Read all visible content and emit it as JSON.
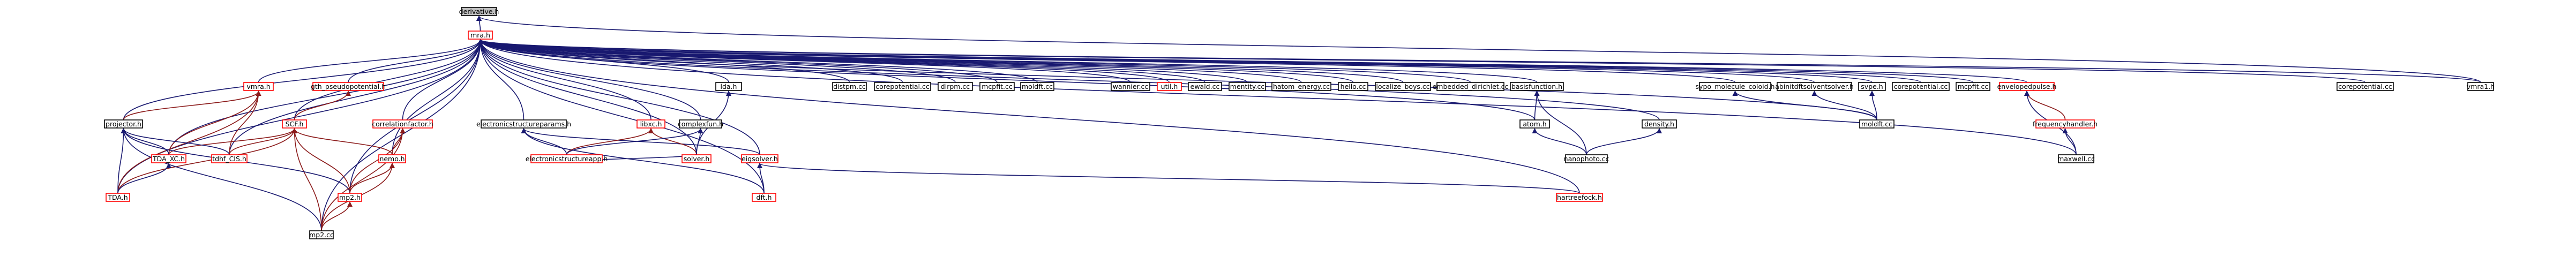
{
  "colors": {
    "normal_border": "#000000",
    "link_border": "#ff0000",
    "root_fill": "#bfbfbf",
    "edge_blue": "#191970",
    "edge_red": "#8b1a1a",
    "text": "#000000"
  },
  "graph": {
    "nodes": [
      {
        "id": "derivative_h",
        "label": "derivative.h",
        "root": true
      },
      {
        "id": "mra_h",
        "label": "mra.h",
        "link": true
      },
      {
        "id": "vmra1_h",
        "label": "vmra1.h"
      },
      {
        "id": "vmra_h",
        "label": "vmra.h",
        "link": true
      },
      {
        "id": "gth_h",
        "label": "gth_pseudopotential.h",
        "link": true
      },
      {
        "id": "lda_h",
        "label": "lda.h"
      },
      {
        "id": "distpm_cc",
        "label": "distpm.cc"
      },
      {
        "id": "corepotential_cc",
        "label": "corepotential.cc"
      },
      {
        "id": "dirpm_cc",
        "label": "dirpm.cc"
      },
      {
        "id": "mcpfit_cc",
        "label": "mcpfit.cc"
      },
      {
        "id": "moldft_cc",
        "label": "moldft.cc"
      },
      {
        "id": "wannier_cc",
        "label": "wannier.cc"
      },
      {
        "id": "util_h",
        "label": "util.h",
        "link": true
      },
      {
        "id": "ewald_cc",
        "label": "ewald.cc"
      },
      {
        "id": "mentity_cc",
        "label": "mentity.cc"
      },
      {
        "id": "hatom_energy_cc",
        "label": "hatom_energy.cc"
      },
      {
        "id": "hello_cc",
        "label": "hello.cc"
      },
      {
        "id": "localize_boys_cc",
        "label": "localize_boys.cc"
      },
      {
        "id": "embedded_dirichlet_cc",
        "label": "embedded_dirichlet.cc"
      },
      {
        "id": "basisfunction_h",
        "label": "basisfunction.h"
      },
      {
        "id": "sypo_molecule_coloid_h",
        "label": "sypo_molecule_coloid.h"
      },
      {
        "id": "abinitdftsolventsolver_h",
        "label": "abinitdftsolventsolver.h"
      },
      {
        "id": "svpe_h",
        "label": "svpe.h"
      },
      {
        "id": "corepotential_cc2",
        "label": "corepotential.cc"
      },
      {
        "id": "mcpfit_cc2",
        "label": "mcpfit.cc"
      },
      {
        "id": "envelopedpulse_h",
        "label": "envelopedpulse.h",
        "link": true
      },
      {
        "id": "corepotential_cc3",
        "label": "corepotential.cc"
      },
      {
        "id": "projector_h",
        "label": "projector.h"
      },
      {
        "id": "scf_h",
        "label": "SCF.h",
        "link": true
      },
      {
        "id": "correlationfactor_h",
        "label": "correlationfactor.h",
        "link": true
      },
      {
        "id": "electronicstructureparams_h",
        "label": "electronicstructureparams.h"
      },
      {
        "id": "libxc_h",
        "label": "libxc.h",
        "link": true
      },
      {
        "id": "complexfun_h",
        "label": "complexfun.h"
      },
      {
        "id": "atom_h",
        "label": "atom.h"
      },
      {
        "id": "density_h",
        "label": "density.h"
      },
      {
        "id": "moldft_cc2",
        "label": "moldft.cc"
      },
      {
        "id": "frequencyhandler_h",
        "label": "frequencyhandler.h",
        "link": true
      },
      {
        "id": "tda_xc_h",
        "label": "TDA_XC.h",
        "link": true
      },
      {
        "id": "tdhf_cis_h",
        "label": "tdhf_CIS.h",
        "link": true
      },
      {
        "id": "nemo_h",
        "label": "nemo.h",
        "link": true
      },
      {
        "id": "electronicstructureapp_h",
        "label": "electronicstructureapp.h",
        "link": true
      },
      {
        "id": "solver_h",
        "label": "solver.h",
        "link": true
      },
      {
        "id": "eigsolver_h",
        "label": "eigsolver.h",
        "link": true
      },
      {
        "id": "nanophoto_cc",
        "label": "nanophoto.cc"
      },
      {
        "id": "maxwell_cc",
        "label": "maxwell.cc"
      },
      {
        "id": "tda_h",
        "label": "TDA.h",
        "link": true
      },
      {
        "id": "mp2_h",
        "label": "mp2.h",
        "link": true
      },
      {
        "id": "hartreefock_h",
        "label": "hartreefock.h",
        "link": true
      },
      {
        "id": "dft_h",
        "label": "dft.h",
        "link": true
      },
      {
        "id": "mp2_cc",
        "label": "mp2.cc"
      }
    ]
  }
}
